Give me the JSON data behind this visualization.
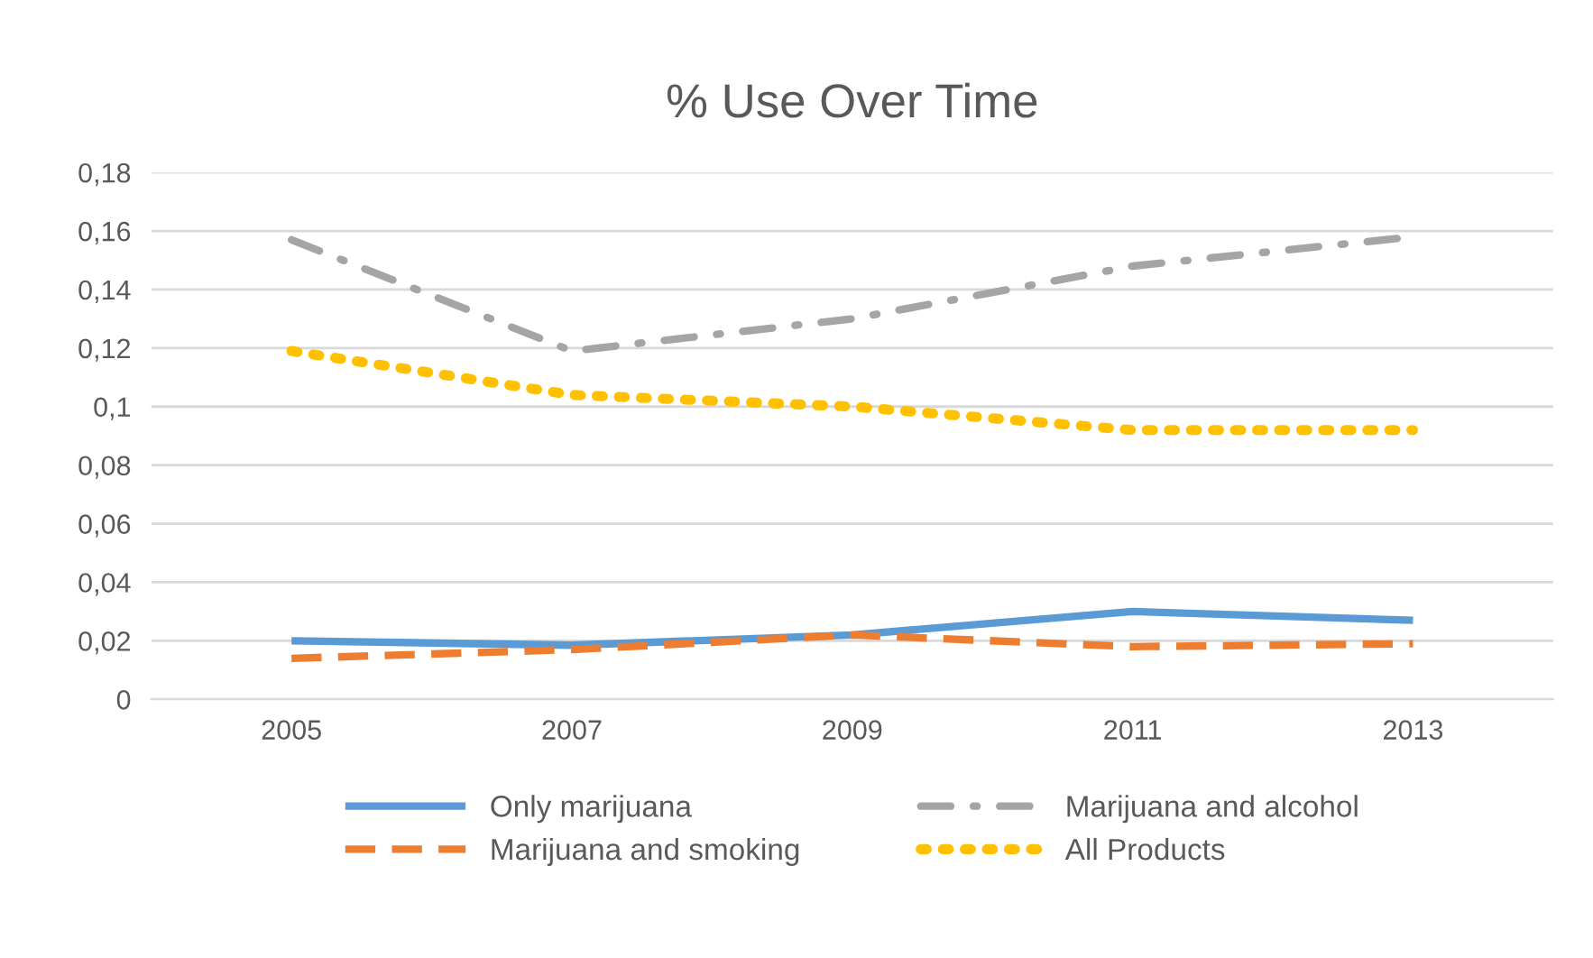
{
  "chart_data": {
    "type": "line",
    "title": "% Use Over Time",
    "categories": [
      "2005",
      "2007",
      "2009",
      "2011",
      "2013"
    ],
    "series": [
      {
        "name": "Only marijuana",
        "color": "#5b9bd5",
        "line_style": "solid",
        "values": [
          0.02,
          0.0185,
          0.022,
          0.03,
          0.027
        ]
      },
      {
        "name": "Marijuana and smoking",
        "color": "#ed7d31",
        "line_style": "dashed",
        "values": [
          0.014,
          0.017,
          0.022,
          0.018,
          0.019
        ]
      },
      {
        "name": "Marijuana and alcohol",
        "color": "#a5a5a5",
        "line_style": "dashdot",
        "values": [
          0.157,
          0.119,
          0.13,
          0.148,
          0.158
        ]
      },
      {
        "name": "All Products",
        "color": "#ffc000",
        "line_style": "dotted",
        "values": [
          0.119,
          0.104,
          0.1,
          0.092,
          0.092
        ]
      }
    ],
    "ylim": [
      0,
      0.18
    ],
    "yticks": [
      {
        "value": 0,
        "label": "0"
      },
      {
        "value": 0.02,
        "label": "0,02"
      },
      {
        "value": 0.04,
        "label": "0,04"
      },
      {
        "value": 0.06,
        "label": "0,06"
      },
      {
        "value": 0.08,
        "label": "0,08"
      },
      {
        "value": 0.1,
        "label": "0,1"
      },
      {
        "value": 0.12,
        "label": "0,12"
      },
      {
        "value": 0.14,
        "label": "0,14"
      },
      {
        "value": 0.16,
        "label": "0,16"
      },
      {
        "value": 0.18,
        "label": "0,18"
      }
    ],
    "grid": "y",
    "legend": "bottom",
    "marker": "none"
  }
}
